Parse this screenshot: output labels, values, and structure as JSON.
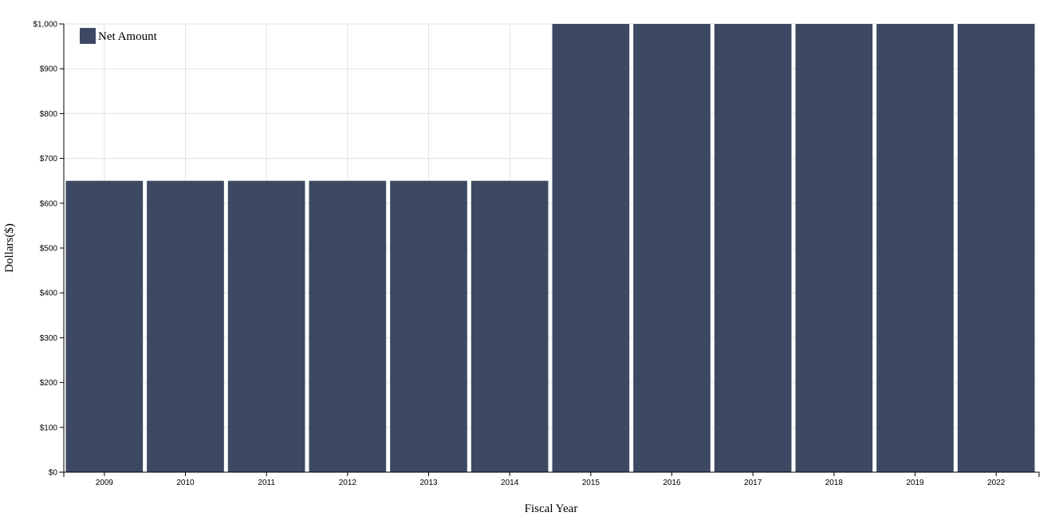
{
  "chart_data": {
    "type": "bar",
    "categories": [
      "2009",
      "2010",
      "2011",
      "2012",
      "2013",
      "2014",
      "2015",
      "2016",
      "2017",
      "2018",
      "2019",
      "2022"
    ],
    "series": [
      {
        "name": "Net Amount",
        "color": "#3d4863",
        "values": [
          650,
          650,
          650,
          650,
          650,
          650,
          1000,
          1000,
          1000,
          1000,
          1000,
          1000
        ]
      }
    ],
    "x_label": "Fiscal Year",
    "y_label": "Dollars($)",
    "ylim": [
      0,
      1000
    ],
    "yticks": [
      {
        "value": 0,
        "label": "$0"
      },
      {
        "value": 100,
        "label": "$100"
      },
      {
        "value": 200,
        "label": "$200"
      },
      {
        "value": 300,
        "label": "$300"
      },
      {
        "value": 400,
        "label": "$400"
      },
      {
        "value": 500,
        "label": "$500"
      },
      {
        "value": 600,
        "label": "$600"
      },
      {
        "value": 700,
        "label": "$700"
      },
      {
        "value": 800,
        "label": "$800"
      },
      {
        "value": 900,
        "label": "$900"
      },
      {
        "value": 1000,
        "label": "$1,000"
      }
    ],
    "grid": true,
    "legend": "top-left"
  }
}
